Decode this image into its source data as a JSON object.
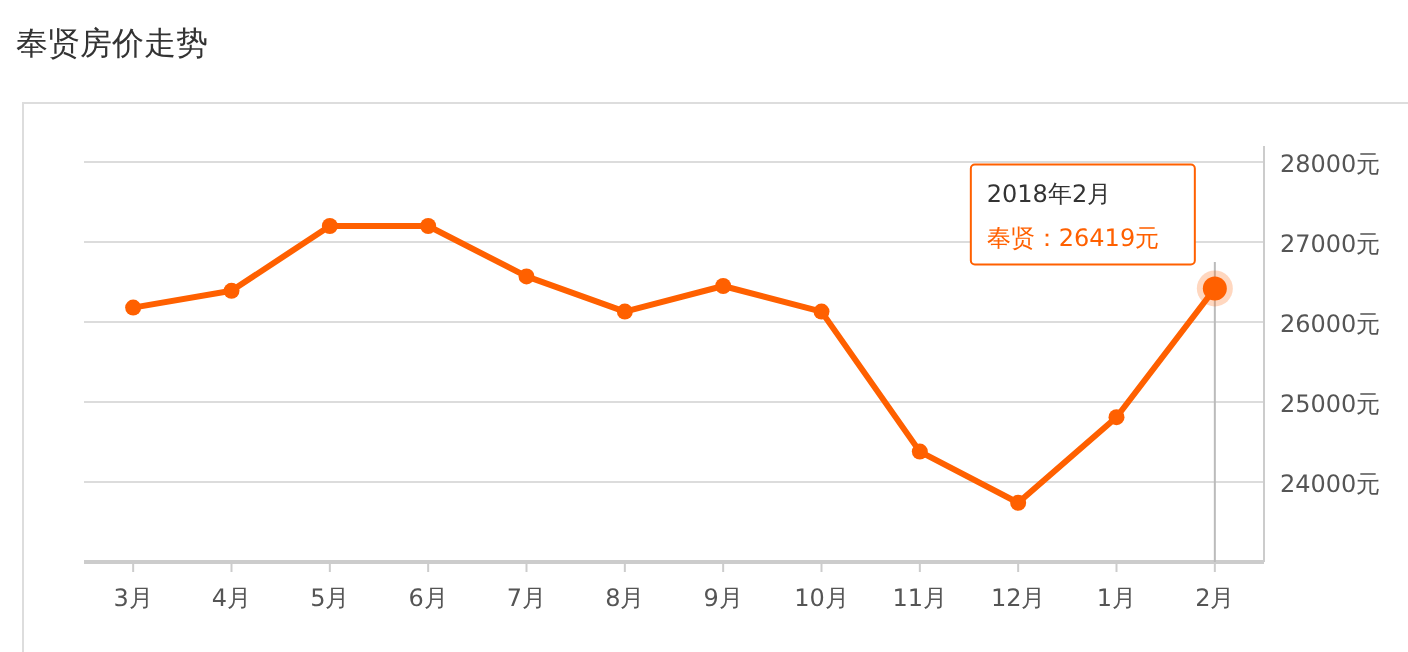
{
  "chart_data": {
    "type": "line",
    "title": "奉贤房价走势",
    "categories": [
      "3月",
      "4月",
      "5月",
      "6月",
      "7月",
      "8月",
      "9月",
      "10月",
      "11月",
      "12月",
      "1月",
      "2月"
    ],
    "series": [
      {
        "color": "#ff6000",
        "values": [
          26180,
          26390,
          27200,
          27200,
          26570,
          26130,
          26450,
          26130,
          24380,
          23740,
          24810,
          26419
        ]
      }
    ],
    "ylim": [
      23000,
      28000
    ],
    "yticks": [
      {
        "value": 23000,
        "label": null
      },
      {
        "value": 24000,
        "label": "24000元"
      },
      {
        "value": 25000,
        "label": "25000元"
      },
      {
        "value": 26000,
        "label": "26000元"
      },
      {
        "value": 27000,
        "label": "27000元"
      },
      {
        "value": 28000,
        "label": "28000元"
      }
    ],
    "grid": "y",
    "marker": "circle",
    "line_style": "solid",
    "ref_lines": [
      {
        "axis": "x",
        "value": "2月",
        "color": "#bbbbbb"
      }
    ],
    "annotations": [
      "2018年2月",
      "奉贤：26419元"
    ]
  }
}
